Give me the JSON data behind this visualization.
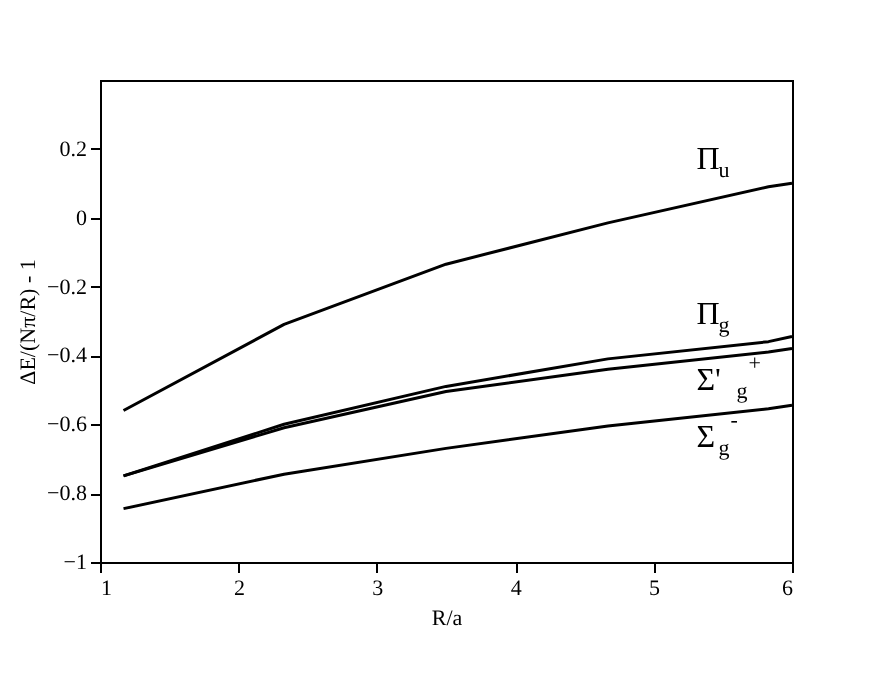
{
  "chart_data": {
    "type": "line",
    "xlabel": "R/a",
    "ylabel": "ΔE/(Nπ/R) - 1",
    "x": [
      1.17,
      2.33,
      3.5,
      4.67,
      5.83,
      6
    ],
    "xlim": [
      1,
      6
    ],
    "xticks": [
      1,
      2,
      3,
      4,
      5,
      6
    ],
    "ylim": [
      -1,
      0.4
    ],
    "yticks": [
      -1,
      -0.8,
      -0.6,
      -0.4,
      -0.2,
      0,
      0.2
    ],
    "grid": false,
    "marker": "none",
    "line_style": "solid",
    "series": [
      {
        "name": "Π$_{u}$",
        "color": "#000000",
        "values": [
          -0.56,
          -0.31,
          -0.135,
          -0.015,
          0.09,
          0.1
        ]
      },
      {
        "name": "Π$_{g}$",
        "color": "#000000",
        "values": [
          -0.75,
          -0.6,
          -0.49,
          -0.41,
          -0.36,
          -0.345
        ]
      },
      {
        "name": "Σ'$_{g}$$^{+}$",
        "color": "#000000",
        "values": [
          -0.75,
          -0.61,
          -0.505,
          -0.44,
          -0.39,
          -0.38
        ]
      },
      {
        "name": "Σ$_{g}$$^{-}$",
        "color": "#000000",
        "values": [
          -0.845,
          -0.745,
          -0.67,
          -0.605,
          -0.555,
          -0.545
        ]
      }
    ]
  }
}
